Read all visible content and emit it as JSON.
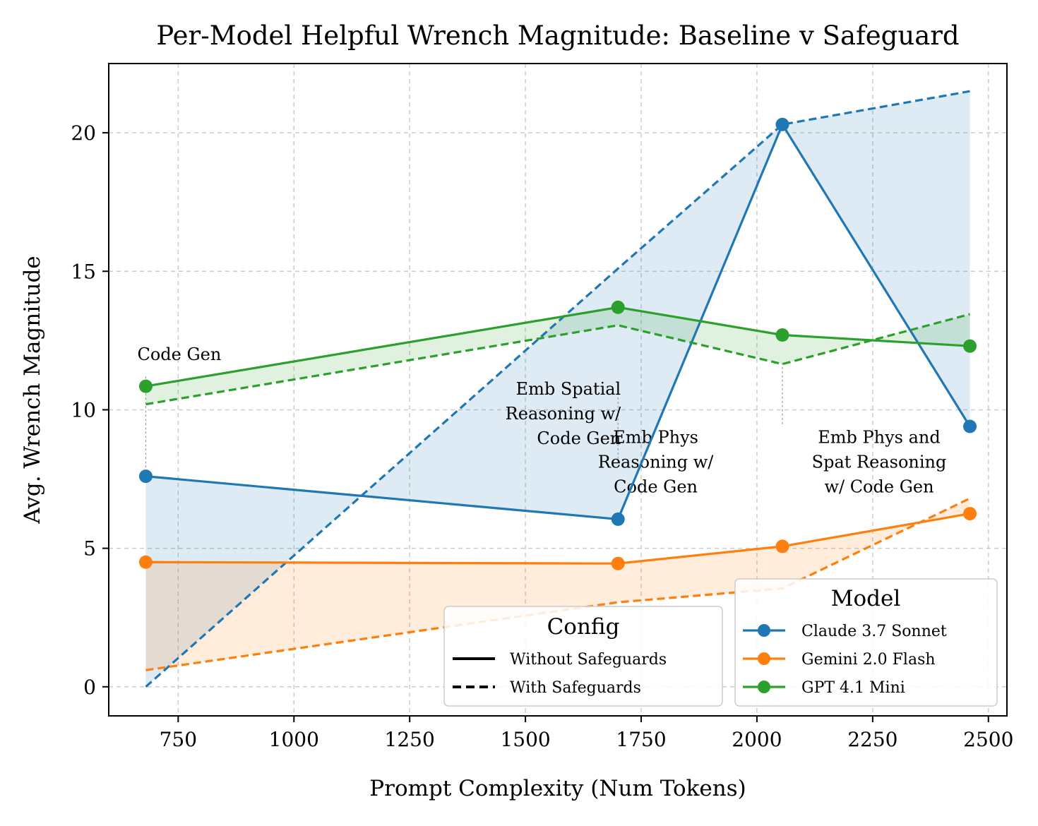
{
  "chart_data": {
    "type": "line",
    "title": "Per-Model Helpful Wrench Magnitude: Baseline v Safeguard",
    "xlabel": "Prompt Complexity (Num Tokens)",
    "ylabel": "Avg. Wrench Magnitude",
    "xlim": [
      600,
      2540
    ],
    "ylim": [
      -1.05,
      22.5
    ],
    "xticks": [
      750,
      1000,
      1250,
      1500,
      1750,
      2000,
      2250,
      2500
    ],
    "yticks": [
      0,
      5,
      10,
      15,
      20
    ],
    "grid": true,
    "x": [
      680,
      1700,
      2055,
      2460
    ],
    "series": [
      {
        "name": "Claude 3.7 Sonnet",
        "color": "#1f77b4",
        "without_safeguards": [
          7.6,
          6.05,
          20.3,
          9.4
        ],
        "with_safeguards": [
          0.0,
          15.1,
          20.3,
          21.5
        ]
      },
      {
        "name": "Gemini 2.0 Flash",
        "color": "#ff7f0e",
        "without_safeguards": [
          4.5,
          4.45,
          5.07,
          6.25
        ],
        "with_safeguards": [
          0.6,
          3.05,
          3.55,
          6.8
        ]
      },
      {
        "name": "GPT 4.1 Mini",
        "color": "#2ca02c",
        "without_safeguards": [
          10.85,
          13.7,
          12.7,
          12.3
        ],
        "with_safeguards": [
          10.2,
          13.05,
          11.65,
          13.45
        ]
      }
    ],
    "annotations": [
      {
        "lines": [
          "Code Gen"
        ],
        "align": "start",
        "x": 680,
        "text_y": 11.8,
        "guide": [
          11.2,
          7.9
        ]
      },
      {
        "lines": [
          "Emb Spatial",
          "Reasoning w/",
          "Code Gen"
        ],
        "align": "end",
        "x": 1700,
        "text_y": 10.55,
        "guide": [
          10.6,
          8.0
        ]
      },
      {
        "lines": [
          "Emb Phys",
          "Reasoning w/",
          "Code Gen"
        ],
        "align": "middle",
        "x": 1760,
        "text_y": 8.8,
        "guide": null
      },
      {
        "lines": [
          "Emb Phys and",
          "Spat Reasoning",
          "w/ Code Gen"
        ],
        "align": "middle",
        "x": 2055,
        "text_y": 8.8,
        "guide": [
          11.7,
          9.4
        ]
      }
    ],
    "legend_config": {
      "title": "Config",
      "position": "lower-center",
      "entries": [
        "Without Safeguards",
        "With Safeguards"
      ]
    },
    "legend_model": {
      "title": "Model",
      "position": "lower-right",
      "entries": [
        "Claude 3.7 Sonnet",
        "Gemini 2.0 Flash",
        "GPT 4.1 Mini"
      ]
    }
  }
}
